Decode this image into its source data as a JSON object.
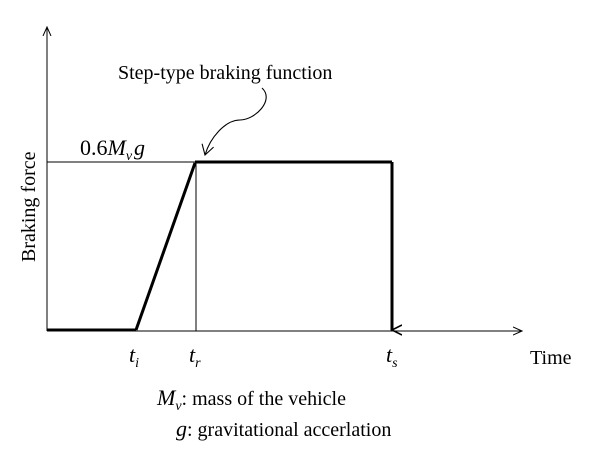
{
  "chart_data": {
    "type": "line",
    "title": "",
    "ylabel": "Braking force",
    "xlabel": "Time",
    "annotation": "Step-type braking function",
    "level": {
      "coefficient": "0.6",
      "mass_symbol": "M",
      "mass_subscript": "v",
      "gravity_symbol": "g"
    },
    "time_markers": [
      {
        "symbol": "t",
        "subscript": "i"
      },
      {
        "symbol": "t",
        "subscript": "r"
      },
      {
        "symbol": "t",
        "subscript": "s"
      }
    ],
    "grid": false
  },
  "legend": {
    "mass": {
      "symbol": "M",
      "subscript": "v",
      "text": ": mass of the vehicle"
    },
    "gravity": {
      "symbol": "g",
      "text": ": gravitational accerlation"
    }
  }
}
